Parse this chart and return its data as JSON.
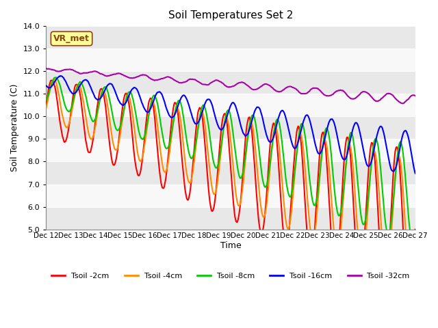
{
  "title": "Soil Temperatures Set 2",
  "xlabel": "Time",
  "ylabel": "Soil Temperature (C)",
  "ylim": [
    5.0,
    14.0
  ],
  "yticks": [
    5.0,
    6.0,
    7.0,
    8.0,
    9.0,
    10.0,
    11.0,
    12.0,
    13.0,
    14.0
  ],
  "xtick_labels": [
    "Dec 12",
    "Dec 13",
    "Dec 14",
    "Dec 15",
    "Dec 16",
    "Dec 17",
    "Dec 18",
    "Dec 19",
    "Dec 20",
    "Dec 21",
    "Dec 22",
    "Dec 23",
    "Dec 24",
    "Dec 25",
    "Dec 26",
    "Dec 27"
  ],
  "legend_label": "VR_met",
  "series_labels": [
    "Tsoil -2cm",
    "Tsoil -4cm",
    "Tsoil -8cm",
    "Tsoil -16cm",
    "Tsoil -32cm"
  ],
  "series_colors": [
    "#FF0000",
    "#FF8C00",
    "#00CC00",
    "#0000FF",
    "#AA00AA"
  ],
  "line_width": 1.5,
  "bg_color_bands": [
    "#E8E8E8",
    "#F8F8F8"
  ],
  "band_step": 1.0,
  "annotation_box_color": "#FFFF99",
  "annotation_text_color": "#8B4513"
}
